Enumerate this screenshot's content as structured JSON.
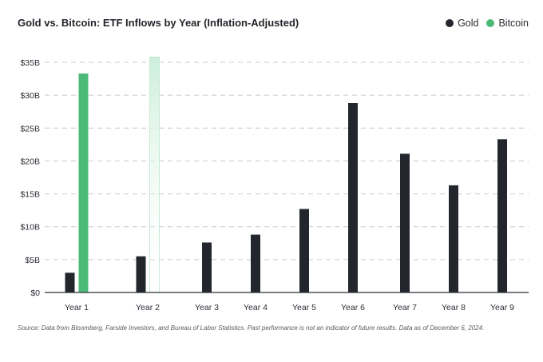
{
  "title": "Gold vs. Bitcoin: ETF Inflows by Year (Inflation-Adjusted)",
  "legend": {
    "gold_label": "Gold",
    "bitcoin_label": "Bitcoin"
  },
  "source_note": "Source: Data from Bloomberg, Farside Investors, and Bureau of Labor Statistics. Past performance is not an indicator of future results. Data as of December 6, 2024.",
  "colors": {
    "gold": "#23272d",
    "bitcoin": "#4cbb78",
    "bitcoin_faded": "#cdeedb",
    "grid": "#c9c9c9",
    "axis": "#2b2f36"
  },
  "chart_data": {
    "type": "bar",
    "title": "Gold vs. Bitcoin: ETF Inflows by Year (Inflation-Adjusted)",
    "categories": [
      "Year 1",
      "Year 2",
      "Year 3",
      "Year 4",
      "Year 5",
      "Year 6",
      "Year 7",
      "Year 8",
      "Year 9"
    ],
    "series": [
      {
        "name": "Gold",
        "color": "#23272d",
        "values": [
          3.0,
          5.5,
          7.6,
          8.8,
          12.7,
          28.8,
          21.1,
          16.3,
          23.3
        ]
      },
      {
        "name": "Bitcoin",
        "color": "#4cbb78",
        "values": [
          33.3,
          35.8,
          null,
          null,
          null,
          null,
          null,
          null,
          null
        ]
      }
    ],
    "ylim": [
      0,
      35
    ],
    "yticks": [
      0,
      5,
      10,
      15,
      20,
      25,
      30,
      35
    ],
    "ytick_labels": [
      "$0",
      "$5B",
      "$10B",
      "$15B",
      "$20B",
      "$25B",
      "$30B",
      "$35B"
    ],
    "bitcoin_year2_style": "faded gradient (partial-year projection)",
    "grid": true,
    "legend_position": "top-right",
    "xlabel": "",
    "ylabel": ""
  }
}
